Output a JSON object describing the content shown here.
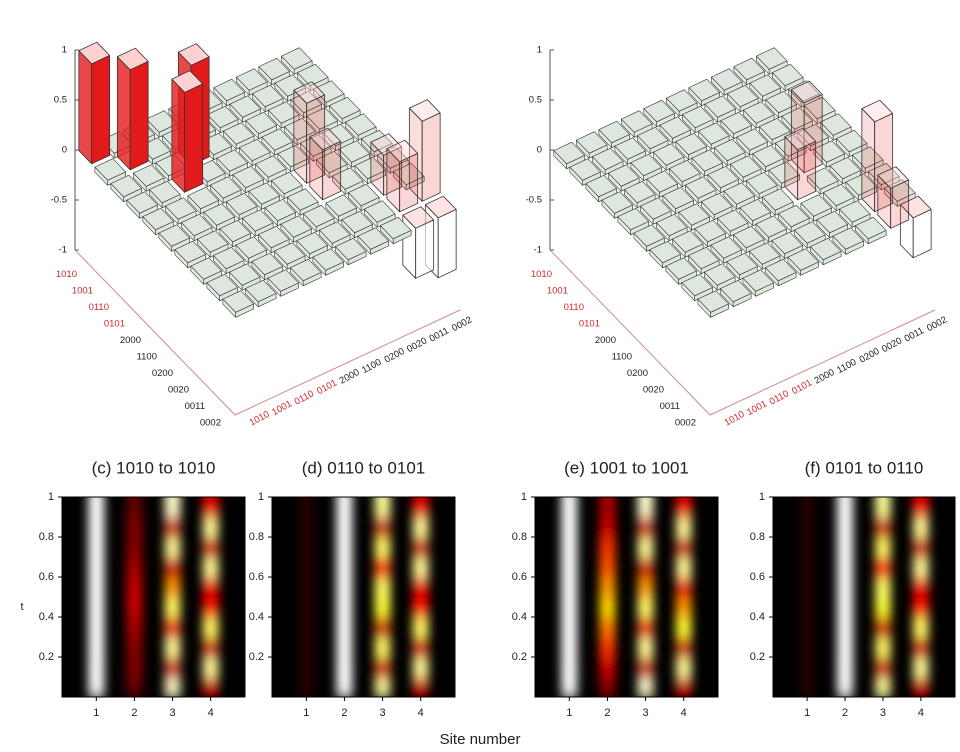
{
  "chart_data": [
    {
      "type": "bar3d",
      "row_labels": [
        "1010",
        "1001",
        "0110",
        "0101",
        "2000",
        "1100",
        "0200",
        "0020",
        "0011",
        "0002"
      ],
      "col_labels": [
        "1010",
        "1001",
        "0110",
        "0101",
        "2000",
        "1100",
        "0200",
        "0020",
        "0011",
        "0002"
      ],
      "label_colors": [
        "#d62728",
        "#d62728",
        "#d62728",
        "#d62728",
        "#222222",
        "#222222",
        "#222222",
        "#222222",
        "#222222",
        "#222222"
      ],
      "zlim": [
        -1,
        1
      ],
      "zticks": [
        -1,
        -0.5,
        0,
        0.5,
        1
      ],
      "bar_color": "#e31a1c",
      "tile_color": "#dde7dd",
      "axis_color": "#d08a8a",
      "values": [
        [
          1,
          0,
          0,
          0,
          0,
          0,
          0,
          0,
          0,
          0
        ],
        [
          0,
          1,
          0,
          0,
          0,
          0,
          0,
          0,
          0,
          0
        ],
        [
          0,
          0,
          0,
          1,
          0,
          0,
          0,
          0,
          0,
          0
        ],
        [
          0,
          0,
          1,
          0,
          0,
          0,
          0,
          0,
          0,
          0
        ],
        [
          0,
          0,
          0,
          0,
          0,
          0,
          0,
          0,
          0,
          0
        ],
        [
          0,
          0,
          0,
          0,
          0,
          0,
          0.8,
          0,
          0,
          0
        ],
        [
          0,
          0,
          0,
          0,
          0,
          0,
          0.5,
          0,
          0,
          0
        ],
        [
          0,
          0,
          0,
          0,
          0,
          0,
          0,
          0,
          0.4,
          0
        ],
        [
          0,
          0,
          0,
          0,
          0,
          0,
          0,
          0,
          0.5,
          0.8
        ],
        [
          0,
          0,
          0,
          0,
          0,
          0,
          0,
          0,
          -0.5,
          -0.6
        ]
      ]
    },
    {
      "type": "bar3d",
      "row_labels": [
        "1010",
        "1001",
        "0110",
        "0101",
        "2000",
        "1100",
        "0200",
        "0020",
        "0011",
        "0002"
      ],
      "col_labels": [
        "1010",
        "1001",
        "0110",
        "0101",
        "2000",
        "1100",
        "0200",
        "0020",
        "0011",
        "0002"
      ],
      "label_colors": [
        "#d62728",
        "#d62728",
        "#d62728",
        "#d62728",
        "#222222",
        "#222222",
        "#222222",
        "#222222",
        "#222222",
        "#222222"
      ],
      "zlim": [
        -1,
        1
      ],
      "zticks": [
        -1,
        -0.5,
        0,
        0.5,
        1
      ],
      "bar_color": "#e31a1c",
      "tile_color": "#dde7dd",
      "axis_color": "#d08a8a",
      "values": [
        [
          0,
          0,
          0,
          0,
          0,
          0,
          0,
          0,
          0,
          0
        ],
        [
          0,
          0,
          0,
          0,
          0,
          0,
          0,
          0,
          0,
          0
        ],
        [
          0,
          0,
          0,
          0,
          0,
          0,
          0,
          0,
          0,
          0
        ],
        [
          0,
          0,
          0,
          0,
          0,
          0,
          0,
          0,
          0,
          0
        ],
        [
          0,
          0,
          0,
          0,
          0,
          0,
          0,
          0,
          0,
          0
        ],
        [
          0,
          0,
          0,
          0,
          0,
          0,
          0,
          0.7,
          0,
          0
        ],
        [
          0,
          0,
          0,
          0,
          0,
          0,
          0.5,
          0,
          0,
          0
        ],
        [
          0,
          0,
          0,
          0,
          0,
          0,
          0,
          0,
          0,
          0
        ],
        [
          0,
          0,
          0,
          0,
          0,
          0,
          0,
          0,
          0.9,
          0
        ],
        [
          0,
          0,
          0,
          0,
          0,
          0,
          0,
          0,
          0.4,
          -0.4
        ]
      ]
    },
    {
      "type": "heatmap",
      "title": "(c) 1010 to 1010",
      "ylabel": "t",
      "colormap": "hot",
      "x": [
        1,
        2,
        3,
        4
      ],
      "y": [
        0.05,
        0.15,
        0.25,
        0.35,
        0.45,
        0.55,
        0.65,
        0.75,
        0.85,
        0.95
      ],
      "xlim": [
        0.1,
        4.9
      ],
      "ylim": [
        0,
        1
      ],
      "xticks": [
        1,
        2,
        3,
        4
      ],
      "yticks": [
        0.2,
        0.4,
        0.6,
        0.8,
        1
      ],
      "values": [
        [
          1,
          1,
          1,
          1,
          1,
          1,
          1,
          1,
          1,
          1
        ],
        [
          0.15,
          0.2,
          0.2,
          0.25,
          0.3,
          0.3,
          0.25,
          0.2,
          0.2,
          0.15
        ],
        [
          0.95,
          0.3,
          0.9,
          0.35,
          0.85,
          0.6,
          0.3,
          0.9,
          0.3,
          0.95
        ],
        [
          0.3,
          0.9,
          0.3,
          0.85,
          0.4,
          0.35,
          0.9,
          0.3,
          0.9,
          0.35
        ]
      ]
    },
    {
      "type": "heatmap",
      "title": "(d) 0110 to 0101",
      "colormap": "hot",
      "x": [
        1,
        2,
        3,
        4
      ],
      "y": [
        0.05,
        0.15,
        0.25,
        0.35,
        0.45,
        0.55,
        0.65,
        0.75,
        0.85,
        0.95
      ],
      "xlim": [
        0.1,
        4.9
      ],
      "ylim": [
        0,
        1
      ],
      "xticks": [
        1,
        2,
        3,
        4
      ],
      "yticks": [
        0.2,
        0.4,
        0.6,
        0.8,
        1
      ],
      "values": [
        [
          0.05,
          0.05,
          0.05,
          0.05,
          0.05,
          0.05,
          0.05,
          0.05,
          0.05,
          0.05
        ],
        [
          1,
          1,
          1,
          1,
          1,
          1,
          1,
          1,
          1,
          1
        ],
        [
          0.9,
          0.3,
          0.85,
          0.3,
          0.8,
          0.85,
          0.4,
          0.85,
          0.3,
          0.9
        ],
        [
          0.3,
          0.9,
          0.3,
          0.85,
          0.4,
          0.35,
          0.9,
          0.3,
          0.9,
          0.35
        ]
      ]
    },
    {
      "type": "heatmap",
      "title": "(e) 1001 to 1001",
      "colormap": "hot",
      "x": [
        1,
        2,
        3,
        4
      ],
      "y": [
        0.05,
        0.15,
        0.25,
        0.35,
        0.45,
        0.55,
        0.65,
        0.75,
        0.85,
        0.95
      ],
      "xlim": [
        0.1,
        4.9
      ],
      "ylim": [
        0,
        1
      ],
      "xticks": [
        1,
        2,
        3,
        4
      ],
      "yticks": [
        0.2,
        0.4,
        0.6,
        0.8,
        1
      ],
      "values": [
        [
          1,
          1,
          1,
          1,
          1,
          1,
          1,
          1,
          1,
          1
        ],
        [
          0.2,
          0.3,
          0.45,
          0.55,
          0.7,
          0.6,
          0.5,
          0.45,
          0.3,
          0.25
        ],
        [
          0.95,
          0.3,
          0.9,
          0.35,
          0.85,
          0.6,
          0.3,
          0.9,
          0.3,
          0.95
        ],
        [
          0.3,
          0.9,
          0.3,
          0.8,
          0.6,
          0.35,
          0.9,
          0.3,
          0.9,
          0.35
        ]
      ]
    },
    {
      "type": "heatmap",
      "title": "(f) 0101 to 0110",
      "colormap": "hot",
      "x": [
        1,
        2,
        3,
        4
      ],
      "y": [
        0.05,
        0.15,
        0.25,
        0.35,
        0.45,
        0.55,
        0.65,
        0.75,
        0.85,
        0.95
      ],
      "xlim": [
        0.1,
        4.9
      ],
      "ylim": [
        0,
        1
      ],
      "xticks": [
        1,
        2,
        3,
        4
      ],
      "yticks": [
        0.2,
        0.4,
        0.6,
        0.8,
        1
      ],
      "values": [
        [
          0.05,
          0.05,
          0.05,
          0.05,
          0.05,
          0.05,
          0.05,
          0.05,
          0.05,
          0.05
        ],
        [
          1,
          1,
          1,
          1,
          1,
          1,
          1,
          1,
          1,
          1
        ],
        [
          0.9,
          0.3,
          0.85,
          0.3,
          0.8,
          0.85,
          0.4,
          0.85,
          0.3,
          0.9
        ],
        [
          0.3,
          0.9,
          0.3,
          0.85,
          0.4,
          0.35,
          0.9,
          0.3,
          0.9,
          0.35
        ]
      ]
    }
  ],
  "xlabel": "Site number"
}
